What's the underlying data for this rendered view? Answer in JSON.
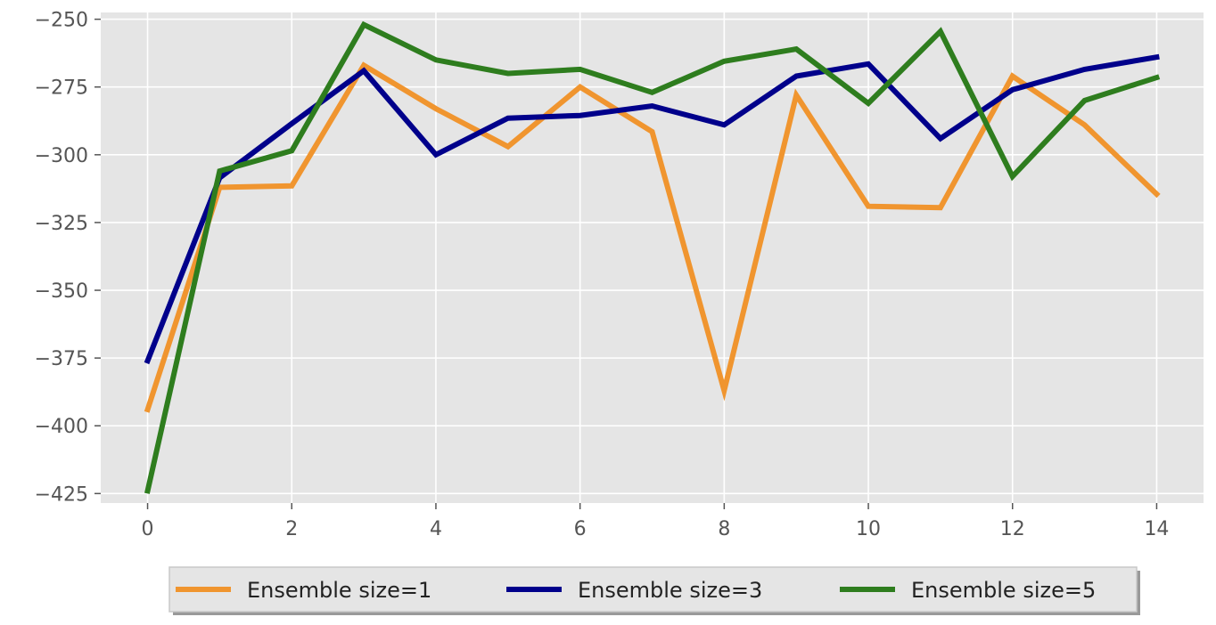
{
  "chart_data": {
    "type": "line",
    "title": "",
    "xlabel": "",
    "ylabel": "",
    "x": [
      0,
      1,
      2,
      3,
      4,
      5,
      6,
      7,
      8,
      9,
      10,
      11,
      12,
      13,
      14
    ],
    "xlim": [
      -0.65,
      14.65
    ],
    "ylim": [
      -428.5,
      -247.5
    ],
    "xticks": [
      0,
      2,
      4,
      6,
      8,
      10,
      12,
      14
    ],
    "yticks": [
      -250,
      -275,
      -300,
      -325,
      -350,
      -375,
      -400,
      -425
    ],
    "xtick_labels": [
      "0",
      "2",
      "4",
      "6",
      "8",
      "10",
      "12",
      "14"
    ],
    "ytick_labels": [
      "−250",
      "−275",
      "−300",
      "−325",
      "−350",
      "−375",
      "−400",
      "−425"
    ],
    "grid": true,
    "legend_position": "bottom-center",
    "series": [
      {
        "name": "Ensemble size=1",
        "color": "#f0952f",
        "values": [
          -394,
          -312,
          -311.5,
          -267,
          -283,
          -297,
          -275,
          -291.5,
          -387,
          -278,
          -319,
          -319.5,
          -271,
          -289,
          -314.5
        ]
      },
      {
        "name": "Ensemble size=3",
        "color": "#00008b",
        "values": [
          -376,
          -308.5,
          -288.5,
          -269,
          -300,
          -286.5,
          -285.5,
          -282,
          -289,
          -271,
          -266.5,
          -294,
          -276,
          -268.5,
          -264
        ]
      },
      {
        "name": "Ensemble size=5",
        "color": "#2e7d1e",
        "values": [
          -424,
          -306,
          -298.5,
          -252,
          -265,
          -270,
          -268.5,
          -277,
          -265.5,
          -261,
          -281,
          -254.5,
          -308,
          -280,
          -271.5
        ]
      }
    ]
  }
}
